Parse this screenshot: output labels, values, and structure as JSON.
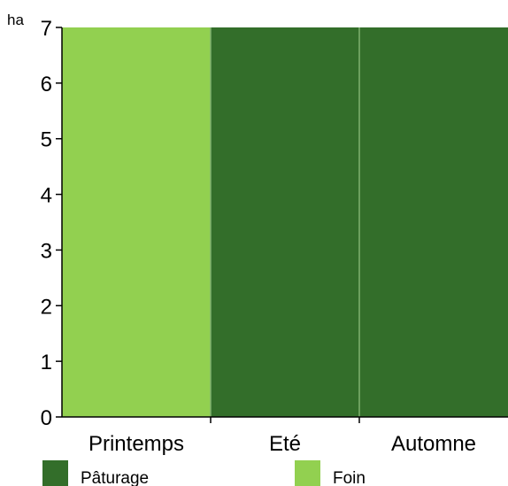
{
  "chart_data": {
    "type": "bar",
    "stacked": true,
    "categories": [
      "Printemps",
      "Eté",
      "Automne"
    ],
    "series": [
      {
        "name": "Pâturage",
        "color": "#336e2a",
        "values": [
          0,
          7,
          7
        ]
      },
      {
        "name": "Foin",
        "color": "#92d050",
        "values": [
          7,
          0,
          0
        ]
      }
    ],
    "ylabel": "ha",
    "ylim": [
      0,
      7
    ],
    "yticks": [
      0,
      1,
      2,
      3,
      4,
      5,
      6,
      7
    ],
    "grid": false,
    "legend_position": "bottom",
    "legend": [
      {
        "label": "Pâturage",
        "color": "#336e2a"
      },
      {
        "label": "Foin",
        "color": "#92d050"
      }
    ]
  }
}
